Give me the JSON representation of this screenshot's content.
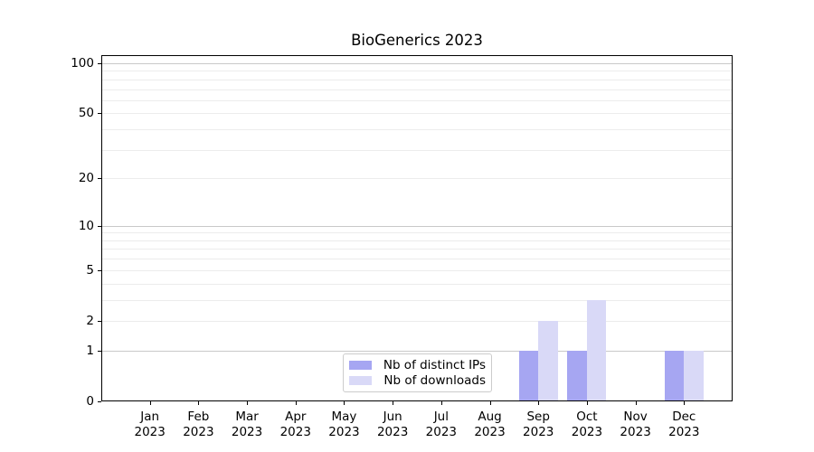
{
  "chart_data": {
    "type": "bar",
    "title": "BioGenerics 2023",
    "year": "2023",
    "months": [
      "Jan",
      "Feb",
      "Mar",
      "Apr",
      "May",
      "Jun",
      "Jul",
      "Aug",
      "Sep",
      "Oct",
      "Nov",
      "Dec"
    ],
    "series": [
      {
        "name": "Nb of distinct IPs",
        "color": "#a6a6f2",
        "values": [
          0,
          0,
          0,
          0,
          0,
          0,
          0,
          0,
          1,
          1,
          0,
          1
        ]
      },
      {
        "name": "Nb of downloads",
        "color": "#d9d9f7",
        "values": [
          0,
          0,
          0,
          0,
          0,
          0,
          0,
          0,
          2,
          3,
          0,
          1
        ]
      }
    ],
    "yscale": "log1p",
    "ylim": [
      0,
      112
    ],
    "yticks": [
      0,
      1,
      2,
      5,
      10,
      20,
      50,
      100
    ],
    "major_gridlines": [
      1,
      10,
      100
    ],
    "minor_gridlines": [
      2,
      3,
      4,
      5,
      6,
      7,
      8,
      9,
      20,
      30,
      40,
      50,
      60,
      70,
      80,
      90
    ],
    "legend_position": "lower center",
    "grid": true
  }
}
